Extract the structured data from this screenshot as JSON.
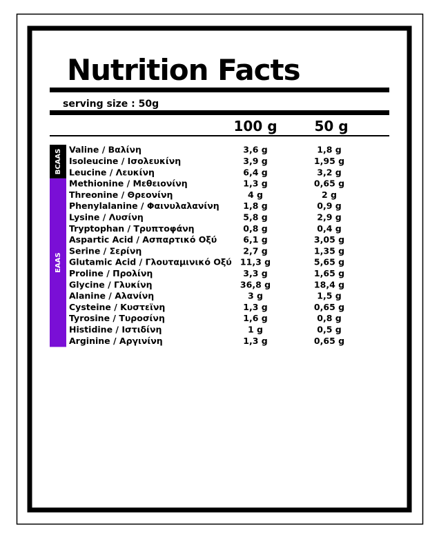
{
  "title": "Nutrition Facts",
  "serving_size": "serving size : 50g",
  "table": {
    "columns": [
      "100 g",
      "50 g"
    ],
    "groups": [
      {
        "label": "BCAAS",
        "color": "#000000",
        "rows": [
          [
            "Valine / Βαλίνη",
            "3,6 g",
            "1,8 g"
          ],
          [
            "Isoleucine / Ισολευκίνη",
            "3,9 g",
            "1,95 g"
          ],
          [
            "Leucine / Λευκίνη",
            "6,4 g",
            "3,2 g"
          ]
        ]
      },
      {
        "label": "EAAS",
        "color": "#7a0fd6",
        "rows": [
          [
            "Methionine / Μεθειονίνη",
            "1,3 g",
            "0,65 g"
          ],
          [
            "Threonine / Θρεονίνη",
            "4 g",
            "2 g"
          ],
          [
            "Phenylalanine / Φαινυλαλανίνη",
            "1,8 g",
            "0,9 g"
          ],
          [
            "Lysine / Λυσίνη",
            "5,8 g",
            "2,9 g"
          ],
          [
            "Tryptophan / Τρυπτοφάνη",
            "0,8 g",
            "0,4 g"
          ],
          [
            "Aspartic Acid / Ασπαρτικό Οξύ",
            "6,1 g",
            "3,05 g"
          ],
          [
            "Serine / Σερίνη",
            "2,7 g",
            "1,35 g"
          ],
          [
            "Glutamic Acid / Γλουταμινικό Οξύ",
            "11,3 g",
            "5,65 g"
          ],
          [
            "Proline / Προλίνη",
            "3,3 g",
            "1,65 g"
          ],
          [
            "Glycine / Γλυκίνη",
            "36,8 g",
            "18,4 g"
          ],
          [
            "Alanine / Αλανίνη",
            "3 g",
            "1,5 g"
          ],
          [
            "Cysteine / Κυστεϊνη",
            "1,3 g",
            "0,65 g"
          ],
          [
            "Tyrosine / Τυροσίνη",
            "1,6 g",
            "0,8 g"
          ],
          [
            "Histidine / Ιστιδίνη",
            "1 g",
            "0,5 g"
          ],
          [
            "Arginine / Αργινίνη",
            "1,3 g",
            "0,65 g"
          ]
        ]
      }
    ]
  }
}
